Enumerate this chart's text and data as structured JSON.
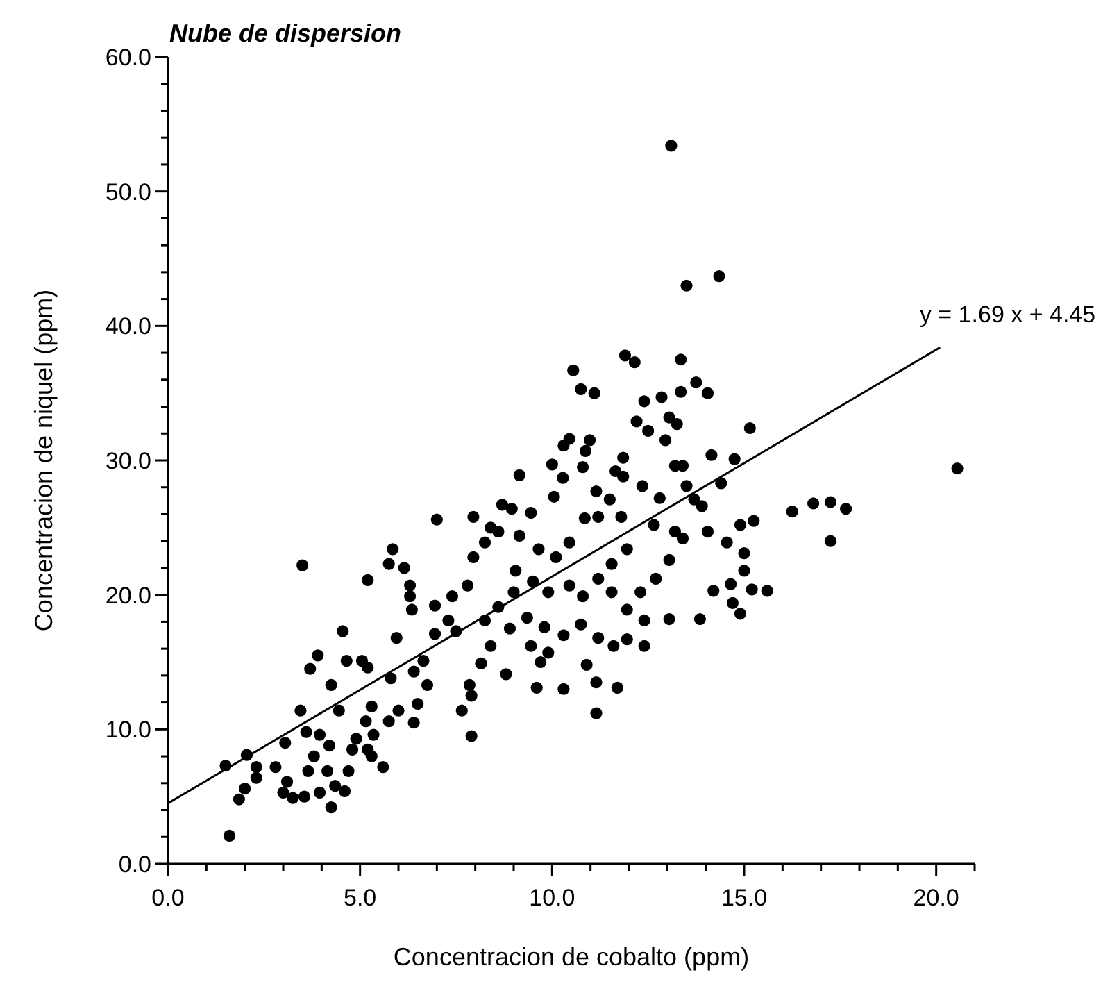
{
  "chart_data": {
    "type": "scatter",
    "title": "Nube de dispersion",
    "xlabel": "Concentracion de cobalto (ppm)",
    "ylabel": "Concentracion de niquel (ppm)",
    "xlim": [
      0,
      21
    ],
    "ylim": [
      0,
      60
    ],
    "xticks": [
      {
        "value": 0,
        "label": "0.0"
      },
      {
        "value": 1,
        "label": null
      },
      {
        "value": 2,
        "label": null
      },
      {
        "value": 3,
        "label": null
      },
      {
        "value": 4,
        "label": null
      },
      {
        "value": 5,
        "label": "5.0"
      },
      {
        "value": 6,
        "label": null
      },
      {
        "value": 7,
        "label": null
      },
      {
        "value": 8,
        "label": null
      },
      {
        "value": 9,
        "label": null
      },
      {
        "value": 10,
        "label": "10.0"
      },
      {
        "value": 11,
        "label": null
      },
      {
        "value": 12,
        "label": null
      },
      {
        "value": 13,
        "label": null
      },
      {
        "value": 14,
        "label": null
      },
      {
        "value": 15,
        "label": "15.0"
      },
      {
        "value": 16,
        "label": null
      },
      {
        "value": 17,
        "label": null
      },
      {
        "value": 18,
        "label": null
      },
      {
        "value": 19,
        "label": null
      },
      {
        "value": 20,
        "label": "20.0"
      },
      {
        "value": 21,
        "label": null
      }
    ],
    "yticks": [
      {
        "value": 0,
        "label": "0.0"
      },
      {
        "value": 2,
        "label": null
      },
      {
        "value": 4,
        "label": null
      },
      {
        "value": 6,
        "label": null
      },
      {
        "value": 8,
        "label": null
      },
      {
        "value": 10,
        "label": "10.0"
      },
      {
        "value": 12,
        "label": null
      },
      {
        "value": 14,
        "label": null
      },
      {
        "value": 16,
        "label": null
      },
      {
        "value": 18,
        "label": null
      },
      {
        "value": 20,
        "label": "20.0"
      },
      {
        "value": 22,
        "label": null
      },
      {
        "value": 24,
        "label": null
      },
      {
        "value": 26,
        "label": null
      },
      {
        "value": 28,
        "label": null
      },
      {
        "value": 30,
        "label": "30.0"
      },
      {
        "value": 32,
        "label": null
      },
      {
        "value": 34,
        "label": null
      },
      {
        "value": 36,
        "label": null
      },
      {
        "value": 38,
        "label": null
      },
      {
        "value": 40,
        "label": "40.0"
      },
      {
        "value": 42,
        "label": null
      },
      {
        "value": 44,
        "label": null
      },
      {
        "value": 46,
        "label": null
      },
      {
        "value": 48,
        "label": null
      },
      {
        "value": 50,
        "label": "50.0"
      },
      {
        "value": 52,
        "label": null
      },
      {
        "value": 54,
        "label": null
      },
      {
        "value": 56,
        "label": null
      },
      {
        "value": 58,
        "label": null
      },
      {
        "value": 60,
        "label": "60.0"
      }
    ],
    "marker": "circle",
    "annotations": [
      {
        "text": "y = 1.69 x + 4.45",
        "x": 20.1,
        "y": 38.4
      }
    ],
    "series": [
      {
        "color": "#000000",
        "x": [
          13.1,
          13.5,
          14.35,
          20.55,
          1.6,
          3.5,
          1.5,
          10.55,
          11.9,
          12.15,
          13.35,
          10.75,
          11.1,
          13.75,
          14.05,
          13.35,
          12.85,
          12.4,
          13.05,
          12.2,
          15.15,
          12.5,
          13.25,
          12.95,
          14.15,
          14.75,
          10.45,
          10.98,
          10.3,
          10.87,
          11.85,
          13.2,
          13.4,
          9.15,
          10.0,
          10.28,
          10.8,
          11.65,
          11.85,
          12.35,
          14.4,
          7.0,
          7.95,
          8.7,
          8.95,
          9.45,
          10.05,
          11.15,
          11.5,
          12.8,
          13.5,
          13.7,
          13.9,
          16.25,
          16.8,
          17.25,
          17.65,
          17.25,
          15.25,
          14.9,
          8.4,
          10.85,
          11.2,
          11.8,
          12.65,
          13.2,
          14.05,
          14.55,
          15.0,
          15.0,
          15.2,
          15.6,
          14.65,
          14.7,
          14.2,
          13.85,
          13.05,
          12.4,
          12.4,
          11.95,
          11.6,
          11.7,
          11.15,
          11.15,
          10.9,
          10.3,
          9.6,
          9.7,
          9.9,
          9.45,
          9.8,
          10.3,
          10.75,
          11.2,
          8.8,
          8.9,
          8.4,
          8.15,
          7.85,
          7.9,
          7.65,
          7.9,
          6.95,
          7.3,
          7.4,
          7.8,
          6.95,
          6.3,
          6.35,
          5.95,
          5.75,
          5.85,
          6.15,
          6.3,
          5.2,
          7.95,
          8.25,
          8.6,
          9.15,
          9.65,
          10.1,
          10.45,
          9.05,
          9.5,
          9.9,
          10.45,
          10.8,
          11.2,
          11.55,
          11.95,
          12.3,
          12.7,
          13.05,
          13.4,
          11.95,
          11.55,
          8.6,
          8.25,
          9.0,
          9.35,
          7.5,
          6.65,
          6.4,
          6.75,
          6.5,
          6.4,
          6.0,
          5.8,
          5.75,
          5.3,
          5.15,
          5.35,
          5.05,
          5.2,
          4.55,
          4.65,
          4.45,
          4.25,
          3.9,
          3.7,
          3.45,
          3.6,
          3.95,
          4.2,
          3.8,
          3.65,
          4.15,
          4.35,
          3.95,
          3.55,
          3.25,
          3.0,
          4.25,
          4.6,
          4.7,
          4.8,
          4.9,
          5.3,
          5.6,
          5.2,
          3.05,
          2.8,
          2.3,
          2.3,
          2.05,
          2.0,
          1.85,
          3.1,
          14.9
        ],
        "values": [
          53.4,
          43.0,
          43.7,
          29.4,
          2.1,
          22.2,
          7.3,
          36.7,
          37.8,
          37.3,
          37.5,
          35.3,
          35.0,
          35.8,
          35.0,
          35.1,
          34.7,
          34.4,
          33.2,
          32.9,
          32.4,
          32.2,
          32.7,
          31.5,
          30.4,
          30.1,
          31.6,
          31.5,
          31.1,
          30.7,
          30.2,
          29.6,
          29.6,
          28.9,
          29.7,
          28.7,
          29.5,
          29.2,
          28.8,
          28.1,
          28.3,
          25.6,
          25.8,
          26.7,
          26.4,
          26.1,
          27.3,
          27.7,
          27.1,
          27.2,
          28.1,
          27.1,
          26.6,
          26.2,
          26.8,
          26.9,
          26.4,
          24.0,
          25.5,
          25.2,
          25.0,
          25.7,
          25.8,
          25.8,
          25.2,
          24.7,
          24.7,
          23.9,
          23.1,
          21.8,
          20.4,
          20.3,
          20.8,
          19.4,
          20.3,
          18.2,
          18.2,
          18.1,
          16.2,
          16.7,
          16.2,
          13.1,
          11.2,
          13.5,
          14.8,
          13.0,
          13.1,
          15.0,
          15.7,
          16.2,
          17.6,
          17.0,
          17.8,
          16.8,
          14.1,
          17.5,
          16.2,
          14.9,
          13.3,
          12.5,
          11.4,
          9.5,
          17.1,
          18.1,
          19.9,
          20.7,
          19.2,
          19.9,
          18.9,
          16.8,
          22.3,
          23.4,
          22.0,
          20.7,
          21.1,
          22.8,
          23.9,
          24.7,
          24.4,
          23.4,
          22.8,
          23.9,
          21.8,
          21.0,
          20.2,
          20.7,
          19.9,
          21.2,
          20.2,
          18.9,
          20.2,
          21.2,
          22.6,
          24.2,
          23.4,
          22.3,
          19.1,
          18.1,
          20.2,
          18.3,
          17.3,
          15.1,
          14.3,
          13.3,
          11.9,
          10.5,
          11.4,
          13.8,
          10.6,
          11.7,
          10.6,
          9.6,
          15.1,
          14.6,
          17.3,
          15.1,
          11.4,
          13.3,
          15.5,
          14.5,
          11.4,
          9.8,
          9.6,
          8.8,
          8.0,
          6.9,
          6.9,
          5.8,
          5.3,
          5.0,
          4.9,
          5.3,
          4.2,
          5.4,
          6.9,
          8.5,
          9.3,
          8.0,
          7.2,
          8.5,
          9.0,
          7.2,
          7.2,
          6.4,
          8.1,
          5.6,
          4.8,
          6.1,
          18.6
        ]
      },
      {
        "type": "line",
        "color": "#000000",
        "marker": "none",
        "x": [
          0,
          20.1
        ],
        "values": [
          4.5,
          38.4
        ]
      }
    ]
  }
}
